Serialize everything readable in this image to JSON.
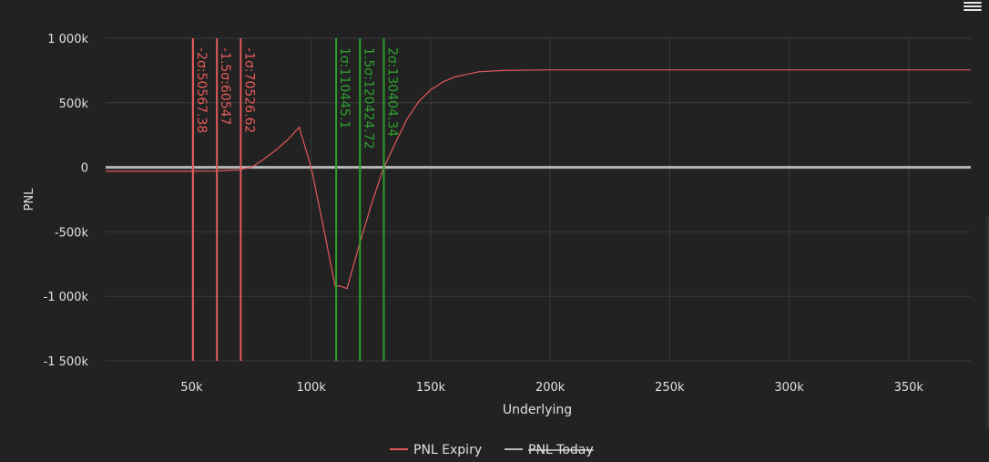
{
  "toolbar": {
    "menu_icon": "hamburger-menu-icon"
  },
  "colors": {
    "background": "#222222",
    "grid": "#3a3a3a",
    "text": "#e0e0e0",
    "expiry": "#e35a5a",
    "today": "#b8b8b8",
    "negative_sigma": "#e35a5a",
    "positive_sigma": "#2ea02e"
  },
  "chart_data": {
    "type": "line",
    "xlabel": "Underlying",
    "ylabel": "PNL",
    "xlim": [
      14000,
      376000
    ],
    "ylim": [
      -1500000,
      1000000
    ],
    "x_ticks": [
      {
        "value": 50000,
        "label": "50k"
      },
      {
        "value": 100000,
        "label": "100k"
      },
      {
        "value": 150000,
        "label": "150k"
      },
      {
        "value": 200000,
        "label": "200k"
      },
      {
        "value": 250000,
        "label": "250k"
      },
      {
        "value": 300000,
        "label": "300k"
      },
      {
        "value": 350000,
        "label": "350k"
      }
    ],
    "y_ticks": [
      {
        "value": 1000000,
        "label": "1 000k"
      },
      {
        "value": 500000,
        "label": "500k"
      },
      {
        "value": 0,
        "label": "0"
      },
      {
        "value": -500000,
        "label": "-500k"
      },
      {
        "value": -1000000,
        "label": "-1 000k"
      },
      {
        "value": -1500000,
        "label": "-1 500k"
      }
    ],
    "grid": true,
    "legend_position": "bottom-center",
    "series": [
      {
        "name": "PNL Expiry",
        "visible": true,
        "x": [
          14000,
          50000,
          60000,
          65000,
          70000,
          72000,
          75000,
          80000,
          85000,
          90000,
          95000,
          100000,
          105000,
          110000,
          112000,
          115000,
          120000,
          125000,
          130000,
          135000,
          140000,
          145000,
          150000,
          155000,
          160000,
          170000,
          180000,
          200000,
          250000,
          300000,
          376000
        ],
        "y": [
          -30000,
          -30000,
          -29000,
          -25000,
          -20000,
          -10000,
          0,
          60000,
          130000,
          210000,
          310000,
          0,
          -450000,
          -920000,
          -920000,
          -940000,
          -610000,
          -300000,
          -20000,
          180000,
          370000,
          510000,
          600000,
          660000,
          700000,
          740000,
          750000,
          755000,
          755000,
          755000,
          755000
        ]
      },
      {
        "name": "PNL Today",
        "visible": false,
        "x": [
          14000,
          376000
        ],
        "y": [
          0,
          0
        ]
      }
    ],
    "vertical_markers": [
      {
        "x": 50567.38,
        "label": "-2σ:50567.38",
        "side": "negative"
      },
      {
        "x": 60547,
        "label": "-1.5σ:60547",
        "side": "negative"
      },
      {
        "x": 70526.62,
        "label": "-1σ:70526.62",
        "side": "negative"
      },
      {
        "x": 110445.1,
        "label": "1σ:110445.1",
        "side": "positive"
      },
      {
        "x": 120424.72,
        "label": "1.5σ:120424.72",
        "side": "positive"
      },
      {
        "x": 130404.34,
        "label": "2σ:130404.34",
        "side": "positive"
      }
    ]
  }
}
